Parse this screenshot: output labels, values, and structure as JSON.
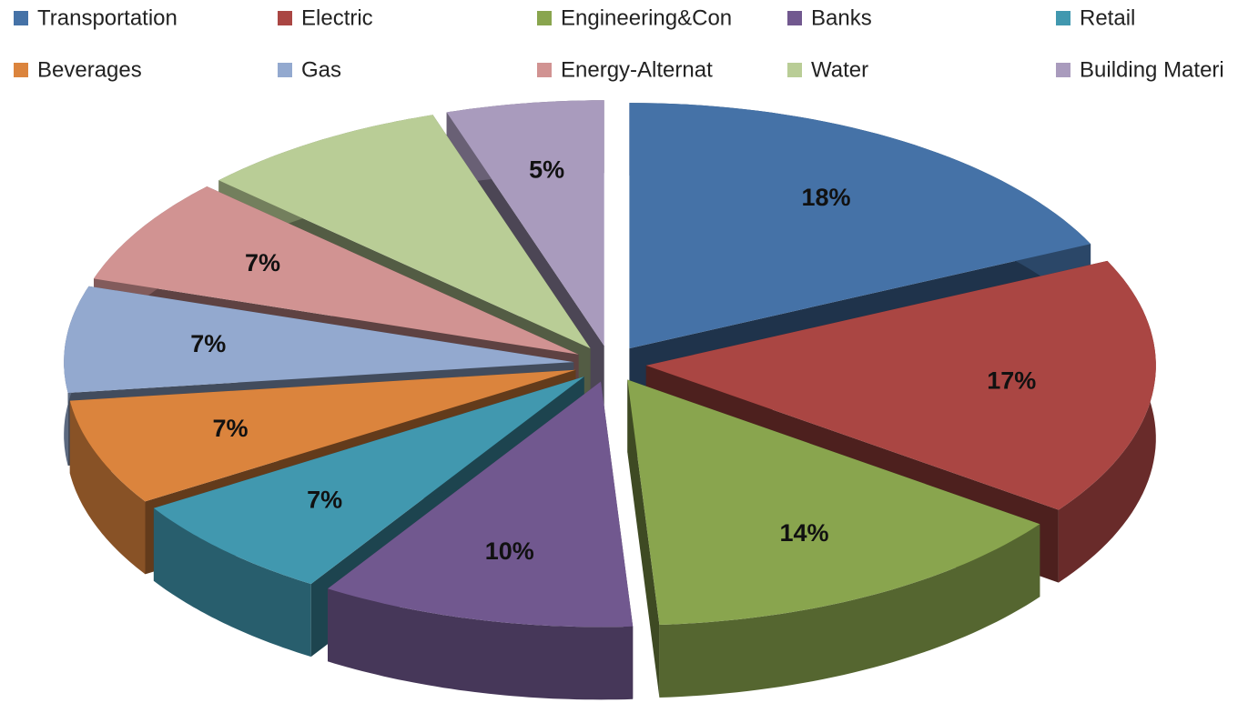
{
  "chart_data": {
    "type": "pie",
    "categories": [
      "Transportation",
      "Electric",
      "Engineering&Con",
      "Banks",
      "Retail",
      "Beverages",
      "Gas",
      "Energy-Alternat",
      "Water",
      "Building Materi"
    ],
    "values": [
      18,
      17,
      14,
      10,
      7,
      7,
      7,
      7,
      8,
      5
    ],
    "value_labels": [
      "18%",
      "17%",
      "14%",
      "10%",
      "7%",
      "7%",
      "7%",
      "7%",
      null,
      "5%"
    ],
    "colors": [
      "#4572a7",
      "#aa4643",
      "#89a54e",
      "#71588f",
      "#4198af",
      "#db843d",
      "#93a9cf",
      "#d19392",
      "#b9cd96",
      "#a99bbd"
    ],
    "legend": "top"
  }
}
